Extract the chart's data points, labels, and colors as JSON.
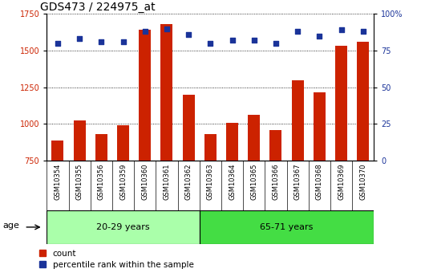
{
  "title": "GDS473 / 224975_at",
  "samples": [
    "GSM10354",
    "GSM10355",
    "GSM10356",
    "GSM10359",
    "GSM10360",
    "GSM10361",
    "GSM10362",
    "GSM10363",
    "GSM10364",
    "GSM10365",
    "GSM10366",
    "GSM10367",
    "GSM10368",
    "GSM10369",
    "GSM10370"
  ],
  "counts": [
    890,
    1025,
    930,
    990,
    1640,
    1680,
    1200,
    930,
    1010,
    1060,
    960,
    1295,
    1215,
    1530,
    1560
  ],
  "percentile_ranks": [
    80,
    83,
    81,
    81,
    88,
    90,
    86,
    80,
    82,
    82,
    80,
    88,
    85,
    89,
    88
  ],
  "ylim_left": [
    750,
    1750
  ],
  "ylim_right": [
    0,
    100
  ],
  "yticks_left": [
    750,
    1000,
    1250,
    1500,
    1750
  ],
  "yticks_right": [
    0,
    25,
    50,
    75,
    100
  ],
  "group1_label": "20-29 years",
  "group2_label": "65-71 years",
  "group1_count": 7,
  "group2_count": 8,
  "bar_color": "#cc2200",
  "dot_color": "#1a3399",
  "plot_bg": "#ffffff",
  "tick_area_bg": "#c8c8c8",
  "group1_bg": "#aaffaa",
  "group2_bg": "#44dd44",
  "age_label": "age",
  "legend_count_label": "count",
  "legend_pct_label": "percentile rank within the sample",
  "title_fontsize": 10,
  "tick_fontsize": 7,
  "bar_bottom": 750
}
